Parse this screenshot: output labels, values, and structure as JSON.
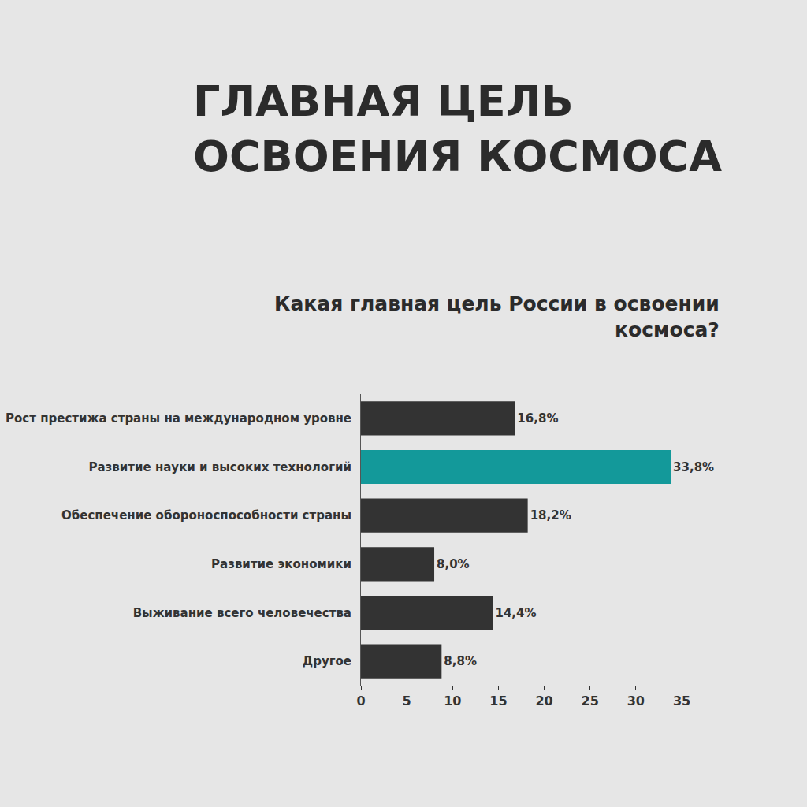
{
  "chart_data": {
    "type": "bar",
    "orientation": "horizontal",
    "title": "ГЛАВНАЯ ЦЕЛЬ ОСВОЕНИЯ КОСМОСА",
    "subtitle": "Какая главная цель России в освоении космоса?",
    "categories": [
      "Рост престижа страны на международном уровне",
      "Развитие науки и высоких технологий",
      "Обеспечение обороноспособности страны",
      "Развитие экономики",
      "Выживание всего человечества",
      "Другое"
    ],
    "values": [
      16.8,
      33.8,
      18.2,
      8.0,
      14.4,
      8.8
    ],
    "value_labels": [
      "16,8%",
      "33,8%",
      "18,2%",
      "8,0%",
      "14,4%",
      "8,8%"
    ],
    "colors": [
      "#333333",
      "#13999a",
      "#333333",
      "#333333",
      "#333333",
      "#333333"
    ],
    "xlim": [
      0,
      35
    ],
    "xticks": [
      0,
      5,
      10,
      15,
      20,
      25,
      30,
      35
    ],
    "grid": false,
    "data_labels": true
  }
}
